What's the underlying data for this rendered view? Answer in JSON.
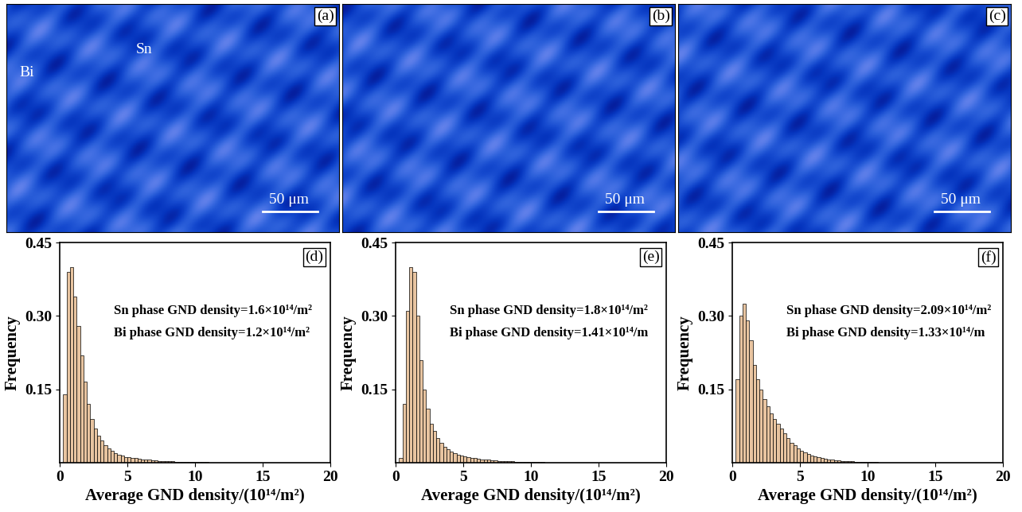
{
  "images": [
    {
      "type": "map",
      "label": "(a)",
      "annotations": [
        "Bi",
        "Sn"
      ],
      "scale_bar": "50 μm"
    },
    {
      "type": "map",
      "label": "(b)",
      "annotations": [],
      "scale_bar": "50 μm"
    },
    {
      "type": "map",
      "label": "(c)",
      "annotations": [],
      "scale_bar": "50 μm"
    }
  ],
  "chart_data": [
    {
      "type": "histogram",
      "label": "(d)",
      "annotations": [
        "Sn phase GND density=1.6×10¹⁴/m²",
        "Bi phase GND density=1.2×10¹⁴/m²"
      ],
      "x_label": "Average GND density/(10¹⁴/m²)",
      "y_label": "Frequency",
      "color": "#e8c4a0",
      "bins": [
        0,
        0.25,
        0.5,
        0.75,
        1,
        1.25,
        1.5,
        1.75,
        2,
        2.25,
        2.5,
        2.75,
        3,
        3.25,
        3.5,
        3.75,
        4,
        4.25,
        4.5,
        4.75,
        5,
        5.25,
        5.5,
        5.75,
        6,
        6.25,
        6.5,
        6.75,
        7,
        7.25,
        7.5,
        7.75,
        8,
        8.25,
        8.5,
        8.75,
        9,
        9.25,
        9.5,
        9.75,
        10,
        10.25,
        10.5,
        10.75,
        11,
        11.25,
        11.5,
        11.75,
        12
      ],
      "counts": [
        0.0,
        0.14,
        0.39,
        0.4,
        0.34,
        0.28,
        0.22,
        0.165,
        0.12,
        0.09,
        0.07,
        0.055,
        0.045,
        0.036,
        0.029,
        0.024,
        0.02,
        0.017,
        0.014,
        0.012,
        0.011,
        0.01,
        0.009,
        0.008,
        0.007,
        0.006,
        0.006,
        0.005,
        0.005,
        0.004,
        0.004,
        0.003,
        0.003,
        0.003,
        0.002,
        0.002,
        0.002,
        0.002,
        0.001,
        0.001,
        0.001,
        0.001,
        0.001,
        0.001,
        0.0005,
        0.0005,
        0.0005,
        0.0005
      ],
      "xlim": [
        0,
        20
      ],
      "xticks": [
        0,
        5,
        10,
        15,
        20
      ],
      "ylim": [
        0,
        0.45
      ],
      "yticks": [
        0.15,
        {
          "value": 0.3,
          "label": "0.30"
        },
        0.45
      ]
    },
    {
      "type": "histogram",
      "label": "(e)",
      "annotations": [
        "Sn phase GND density=1.8×10¹⁴/m²",
        "Bi phase GND density=1.41×10¹⁴/m"
      ],
      "x_label": "Average GND density/(10¹⁴/m²)",
      "y_label": "Frequency",
      "color": "#e8c4a0",
      "bins": [
        0,
        0.25,
        0.5,
        0.75,
        1,
        1.25,
        1.5,
        1.75,
        2,
        2.25,
        2.5,
        2.75,
        3,
        3.25,
        3.5,
        3.75,
        4,
        4.25,
        4.5,
        4.75,
        5,
        5.25,
        5.5,
        5.75,
        6,
        6.25,
        6.5,
        6.75,
        7,
        7.25,
        7.5,
        7.75,
        8,
        8.25,
        8.5,
        8.75,
        9,
        9.25,
        9.5,
        9.75,
        10,
        10.25,
        10.5,
        10.75,
        11,
        11.25,
        11.5,
        11.75,
        12
      ],
      "counts": [
        0.0,
        0.01,
        0.12,
        0.31,
        0.4,
        0.39,
        0.3,
        0.21,
        0.15,
        0.11,
        0.08,
        0.065,
        0.05,
        0.04,
        0.033,
        0.027,
        0.023,
        0.02,
        0.017,
        0.015,
        0.013,
        0.011,
        0.01,
        0.009,
        0.008,
        0.007,
        0.006,
        0.006,
        0.005,
        0.005,
        0.004,
        0.004,
        0.003,
        0.003,
        0.003,
        0.002,
        0.002,
        0.002,
        0.002,
        0.001,
        0.001,
        0.001,
        0.001,
        0.001,
        0.0005,
        0.0005,
        0.0005,
        0.0005
      ],
      "xlim": [
        0,
        20
      ],
      "xticks": [
        0,
        5,
        10,
        15,
        20
      ],
      "ylim": [
        0,
        0.45
      ],
      "yticks": [
        0.15,
        {
          "value": 0.3,
          "label": "0.30"
        },
        0.45
      ]
    },
    {
      "type": "histogram",
      "label": "(f)",
      "annotations": [
        "Sn phase GND density=2.09×10¹⁴/m²",
        "Bi phase GND density=1.33×10¹⁴/m"
      ],
      "x_label": "Average GND density/(10¹⁴/m²)",
      "y_label": "Frequency",
      "color": "#e8c4a0",
      "bins": [
        0,
        0.25,
        0.5,
        0.75,
        1,
        1.25,
        1.5,
        1.75,
        2,
        2.25,
        2.5,
        2.75,
        3,
        3.25,
        3.5,
        3.75,
        4,
        4.25,
        4.5,
        4.75,
        5,
        5.25,
        5.5,
        5.75,
        6,
        6.25,
        6.5,
        6.75,
        7,
        7.25,
        7.5,
        7.75,
        8,
        8.25,
        8.5,
        8.75,
        9,
        9.25,
        9.5,
        9.75,
        10,
        10.25,
        10.5,
        10.75,
        11,
        11.25,
        11.5,
        11.75,
        12
      ],
      "counts": [
        0.0,
        0.17,
        0.3,
        0.325,
        0.29,
        0.25,
        0.2,
        0.17,
        0.15,
        0.13,
        0.115,
        0.1,
        0.09,
        0.08,
        0.07,
        0.06,
        0.05,
        0.04,
        0.035,
        0.03,
        0.025,
        0.021,
        0.018,
        0.015,
        0.013,
        0.011,
        0.009,
        0.008,
        0.007,
        0.006,
        0.005,
        0.0045,
        0.004,
        0.0035,
        0.003,
        0.0025,
        0.002,
        0.002,
        0.0015,
        0.0015,
        0.001,
        0.001,
        0.001,
        0.0008,
        0.0006,
        0.0005,
        0.0004,
        0.0003
      ],
      "xlim": [
        0,
        20
      ],
      "xticks": [
        0,
        5,
        10,
        15,
        20
      ],
      "ylim": [
        0,
        0.45
      ],
      "yticks": [
        0.15,
        {
          "value": 0.3,
          "label": "0.30"
        },
        0.45
      ]
    }
  ]
}
